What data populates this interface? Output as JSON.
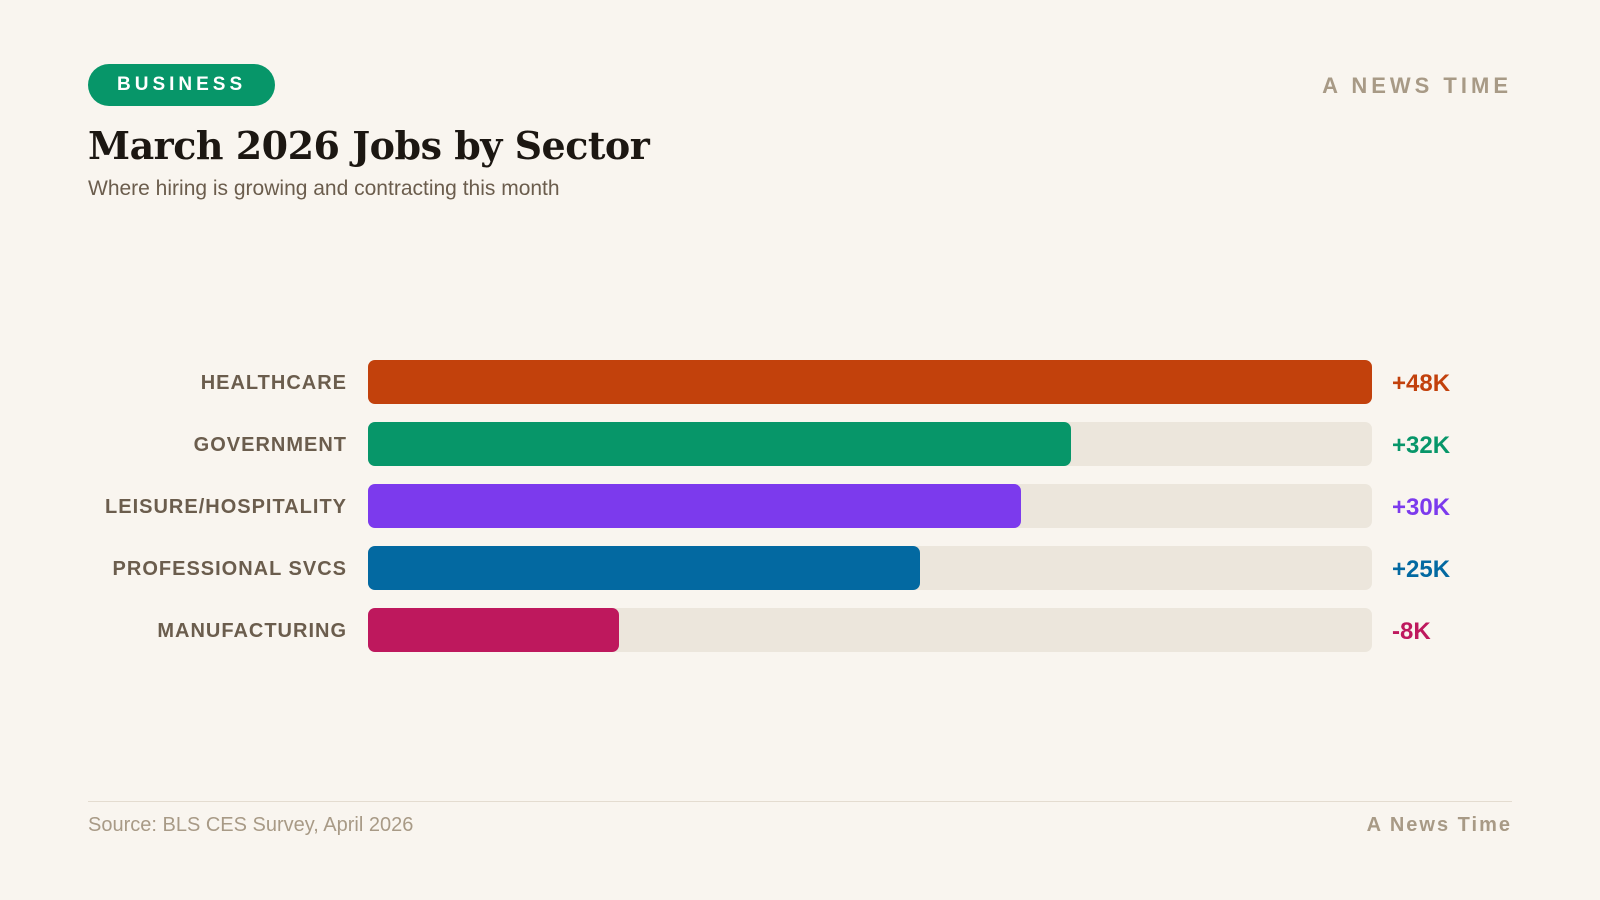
{
  "header": {
    "badge": "BUSINESS",
    "brand": "A NEWS TIME",
    "title": "March 2026 Jobs by Sector",
    "subtitle": "Where hiring is growing and contracting this month"
  },
  "footer": {
    "source": "Source: BLS CES Survey, April 2026",
    "brand": "A News Time"
  },
  "colors": {
    "background": "#f9f5ef",
    "badge": "#079669",
    "track": "#ece6dc",
    "label": "#6b5d4d",
    "muted": "#a89a86"
  },
  "chart_data": {
    "type": "bar",
    "orientation": "horizontal",
    "title": "March 2026 Jobs by Sector",
    "unit": "thousand jobs",
    "categories": [
      "HEALTHCARE",
      "GOVERNMENT",
      "LEISURE/HOSPITALITY",
      "PROFESSIONAL SVCS",
      "MANUFACTURING"
    ],
    "values": [
      48,
      32,
      30,
      25,
      -8
    ],
    "value_labels": [
      "+48K",
      "+32K",
      "+30K",
      "+25K",
      "-8K"
    ],
    "bar_fill_fraction": [
      1.0,
      0.7,
      0.65,
      0.55,
      0.25
    ],
    "colors": [
      "#c2410c",
      "#079669",
      "#7c3aed",
      "#0369a1",
      "#be185d"
    ]
  }
}
